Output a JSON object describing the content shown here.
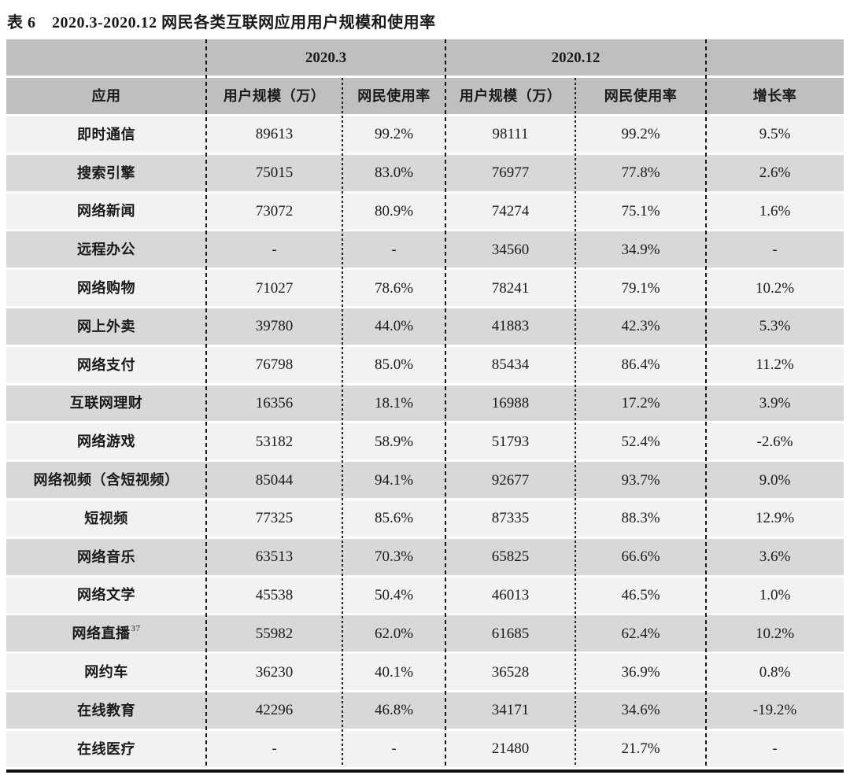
{
  "page": {
    "title": "表 6　2020.3-2020.12 网民各类互联网应用用户规模和使用率"
  },
  "table": {
    "group_headers": {
      "period_1": "2020.3",
      "period_2": "2020.12"
    },
    "column_headers": {
      "app": "应用",
      "scale_1": "用户规模（万）",
      "usage_1": "网民使用率",
      "scale_2": "用户规模（万）",
      "usage_2": "网民使用率",
      "growth": "增长率"
    },
    "rows": [
      {
        "app": "即时通信",
        "values": [
          "89613",
          "99.2%",
          "98111",
          "99.2%",
          "9.5%"
        ]
      },
      {
        "app": "搜索引擎",
        "values": [
          "75015",
          "83.0%",
          "76977",
          "77.8%",
          "2.6%"
        ]
      },
      {
        "app": "网络新闻",
        "values": [
          "73072",
          "80.9%",
          "74274",
          "75.1%",
          "1.6%"
        ]
      },
      {
        "app": "远程办公",
        "values": [
          "-",
          "-",
          "34560",
          "34.9%",
          "-"
        ]
      },
      {
        "app": "网络购物",
        "values": [
          "71027",
          "78.6%",
          "78241",
          "79.1%",
          "10.2%"
        ]
      },
      {
        "app": "网上外卖",
        "values": [
          "39780",
          "44.0%",
          "41883",
          "42.3%",
          "5.3%"
        ]
      },
      {
        "app": "网络支付",
        "values": [
          "76798",
          "85.0%",
          "85434",
          "86.4%",
          "11.2%"
        ]
      },
      {
        "app": "互联网理财",
        "values": [
          "16356",
          "18.1%",
          "16988",
          "17.2%",
          "3.9%"
        ]
      },
      {
        "app": "网络游戏",
        "values": [
          "53182",
          "58.9%",
          "51793",
          "52.4%",
          "-2.6%"
        ]
      },
      {
        "app": "网络视频（含短视频）",
        "values": [
          "85044",
          "94.1%",
          "92677",
          "93.7%",
          "9.0%"
        ]
      },
      {
        "app": "短视频",
        "values": [
          "77325",
          "85.6%",
          "87335",
          "88.3%",
          "12.9%"
        ]
      },
      {
        "app": "网络音乐",
        "values": [
          "63513",
          "70.3%",
          "65825",
          "66.6%",
          "3.6%"
        ]
      },
      {
        "app": "网络文学",
        "values": [
          "45538",
          "50.4%",
          "46013",
          "46.5%",
          "1.0%"
        ]
      },
      {
        "app": "网络直播",
        "app_sup": "37",
        "values": [
          "55982",
          "62.0%",
          "61685",
          "62.4%",
          "10.2%"
        ]
      },
      {
        "app": "网约车",
        "values": [
          "36230",
          "40.1%",
          "36528",
          "36.9%",
          "0.8%"
        ]
      },
      {
        "app": "在线教育",
        "values": [
          "42296",
          "46.8%",
          "34171",
          "34.6%",
          "-19.2%"
        ]
      },
      {
        "app": "在线医疗",
        "values": [
          "-",
          "-",
          "21480",
          "21.7%",
          "-"
        ]
      }
    ],
    "colors": {
      "header_bg": "#bfbfbf",
      "row_light": "#f2f2f2",
      "row_dark": "#d8d8d8",
      "bottom_rule": "#111111",
      "text": "#1a1a1a"
    }
  }
}
